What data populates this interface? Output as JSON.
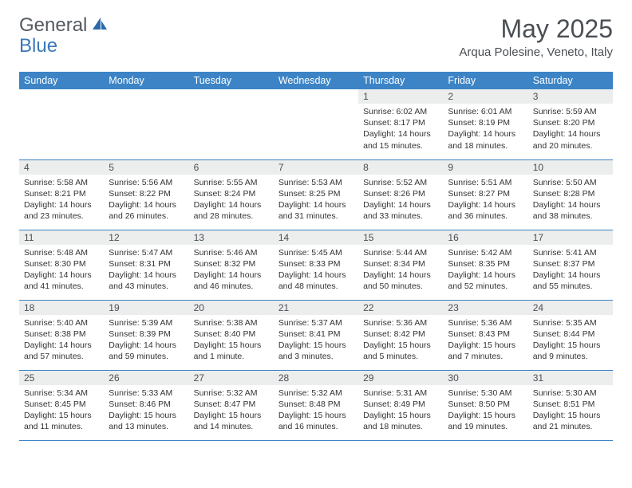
{
  "brand": {
    "general": "General",
    "blue": "Blue"
  },
  "header": {
    "month_title": "May 2025",
    "location": "Arqua Polesine, Veneto, Italy"
  },
  "colors": {
    "header_bg": "#3c84c6",
    "header_text": "#ffffff",
    "daynum_bg": "#eceded",
    "border": "#3c84c6",
    "page_bg": "#ffffff",
    "text": "#333333",
    "title_text": "#4a4f55"
  },
  "typography": {
    "title_fontsize": 32,
    "location_fontsize": 15,
    "weekday_fontsize": 12.5,
    "daynum_fontsize": 12,
    "body_fontsize": 10.5
  },
  "weekdays": [
    "Sunday",
    "Monday",
    "Tuesday",
    "Wednesday",
    "Thursday",
    "Friday",
    "Saturday"
  ],
  "weeks": [
    [
      null,
      null,
      null,
      null,
      {
        "n": "1",
        "sunrise": "6:02 AM",
        "sunset": "8:17 PM",
        "daylight": "14 hours and 15 minutes."
      },
      {
        "n": "2",
        "sunrise": "6:01 AM",
        "sunset": "8:19 PM",
        "daylight": "14 hours and 18 minutes."
      },
      {
        "n": "3",
        "sunrise": "5:59 AM",
        "sunset": "8:20 PM",
        "daylight": "14 hours and 20 minutes."
      }
    ],
    [
      {
        "n": "4",
        "sunrise": "5:58 AM",
        "sunset": "8:21 PM",
        "daylight": "14 hours and 23 minutes."
      },
      {
        "n": "5",
        "sunrise": "5:56 AM",
        "sunset": "8:22 PM",
        "daylight": "14 hours and 26 minutes."
      },
      {
        "n": "6",
        "sunrise": "5:55 AM",
        "sunset": "8:24 PM",
        "daylight": "14 hours and 28 minutes."
      },
      {
        "n": "7",
        "sunrise": "5:53 AM",
        "sunset": "8:25 PM",
        "daylight": "14 hours and 31 minutes."
      },
      {
        "n": "8",
        "sunrise": "5:52 AM",
        "sunset": "8:26 PM",
        "daylight": "14 hours and 33 minutes."
      },
      {
        "n": "9",
        "sunrise": "5:51 AM",
        "sunset": "8:27 PM",
        "daylight": "14 hours and 36 minutes."
      },
      {
        "n": "10",
        "sunrise": "5:50 AM",
        "sunset": "8:28 PM",
        "daylight": "14 hours and 38 minutes."
      }
    ],
    [
      {
        "n": "11",
        "sunrise": "5:48 AM",
        "sunset": "8:30 PM",
        "daylight": "14 hours and 41 minutes."
      },
      {
        "n": "12",
        "sunrise": "5:47 AM",
        "sunset": "8:31 PM",
        "daylight": "14 hours and 43 minutes."
      },
      {
        "n": "13",
        "sunrise": "5:46 AM",
        "sunset": "8:32 PM",
        "daylight": "14 hours and 46 minutes."
      },
      {
        "n": "14",
        "sunrise": "5:45 AM",
        "sunset": "8:33 PM",
        "daylight": "14 hours and 48 minutes."
      },
      {
        "n": "15",
        "sunrise": "5:44 AM",
        "sunset": "8:34 PM",
        "daylight": "14 hours and 50 minutes."
      },
      {
        "n": "16",
        "sunrise": "5:42 AM",
        "sunset": "8:35 PM",
        "daylight": "14 hours and 52 minutes."
      },
      {
        "n": "17",
        "sunrise": "5:41 AM",
        "sunset": "8:37 PM",
        "daylight": "14 hours and 55 minutes."
      }
    ],
    [
      {
        "n": "18",
        "sunrise": "5:40 AM",
        "sunset": "8:38 PM",
        "daylight": "14 hours and 57 minutes."
      },
      {
        "n": "19",
        "sunrise": "5:39 AM",
        "sunset": "8:39 PM",
        "daylight": "14 hours and 59 minutes."
      },
      {
        "n": "20",
        "sunrise": "5:38 AM",
        "sunset": "8:40 PM",
        "daylight": "15 hours and 1 minute."
      },
      {
        "n": "21",
        "sunrise": "5:37 AM",
        "sunset": "8:41 PM",
        "daylight": "15 hours and 3 minutes."
      },
      {
        "n": "22",
        "sunrise": "5:36 AM",
        "sunset": "8:42 PM",
        "daylight": "15 hours and 5 minutes."
      },
      {
        "n": "23",
        "sunrise": "5:36 AM",
        "sunset": "8:43 PM",
        "daylight": "15 hours and 7 minutes."
      },
      {
        "n": "24",
        "sunrise": "5:35 AM",
        "sunset": "8:44 PM",
        "daylight": "15 hours and 9 minutes."
      }
    ],
    [
      {
        "n": "25",
        "sunrise": "5:34 AM",
        "sunset": "8:45 PM",
        "daylight": "15 hours and 11 minutes."
      },
      {
        "n": "26",
        "sunrise": "5:33 AM",
        "sunset": "8:46 PM",
        "daylight": "15 hours and 13 minutes."
      },
      {
        "n": "27",
        "sunrise": "5:32 AM",
        "sunset": "8:47 PM",
        "daylight": "15 hours and 14 minutes."
      },
      {
        "n": "28",
        "sunrise": "5:32 AM",
        "sunset": "8:48 PM",
        "daylight": "15 hours and 16 minutes."
      },
      {
        "n": "29",
        "sunrise": "5:31 AM",
        "sunset": "8:49 PM",
        "daylight": "15 hours and 18 minutes."
      },
      {
        "n": "30",
        "sunrise": "5:30 AM",
        "sunset": "8:50 PM",
        "daylight": "15 hours and 19 minutes."
      },
      {
        "n": "31",
        "sunrise": "5:30 AM",
        "sunset": "8:51 PM",
        "daylight": "15 hours and 21 minutes."
      }
    ]
  ],
  "labels": {
    "sunrise": "Sunrise:",
    "sunset": "Sunset:",
    "daylight": "Daylight:"
  }
}
